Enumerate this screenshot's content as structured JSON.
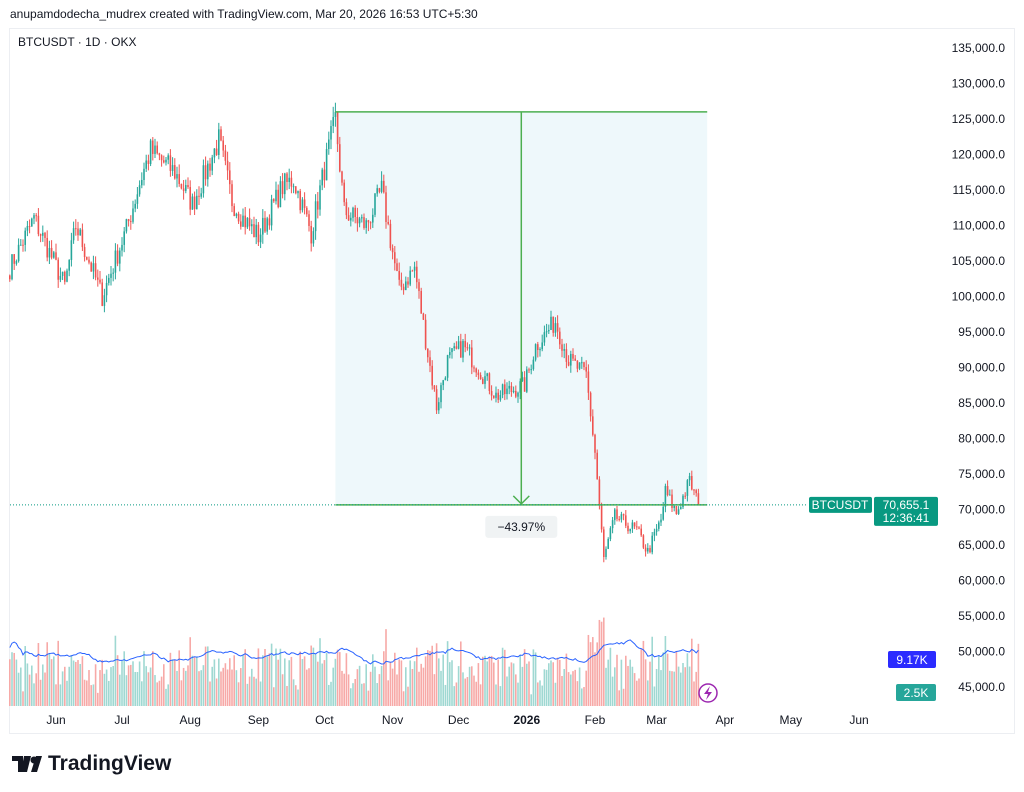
{
  "credit": "anupamdodecha_mudrex created with TradingView.com, Mar 20, 2026 16:53 UTC+5:30",
  "symbol_line": "BTCUSDT · 1D · OKX",
  "logo_text": "TradingView",
  "colors": {
    "up": "#26a69a",
    "down": "#ef5350",
    "measure": "#4caf50",
    "measure_fill": "#eef8fb",
    "vol_ma": "#2962ff",
    "last_label": "#089981"
  },
  "chart_data": {
    "type": "candlestick",
    "title": "",
    "ylim": [
      42000,
      138000
    ],
    "y_ticks": [
      "135,000.0",
      "130,000.0",
      "125,000.0",
      "120,000.0",
      "115,000.0",
      "110,000.0",
      "105,000.0",
      "100,000.0",
      "95,000.0",
      "90,000.0",
      "85,000.0",
      "80,000.0",
      "75,000.0",
      "70,000.0",
      "65,000.0",
      "60,000.0",
      "55,000.0",
      "50,000.0",
      "45,000.0"
    ],
    "x_ticks": [
      "Jun",
      "Jul",
      "Aug",
      "Sep",
      "Oct",
      "Nov",
      "Dec",
      "2026",
      "Feb",
      "Mar",
      "Apr",
      "May",
      "Jun"
    ],
    "close_anchors": [
      [
        "2025-05-11",
        104000
      ],
      [
        "2025-05-22",
        111000
      ],
      [
        "2025-06-05",
        101500
      ],
      [
        "2025-06-10",
        110000
      ],
      [
        "2025-06-22",
        100000
      ],
      [
        "2025-07-03",
        109500
      ],
      [
        "2025-07-10",
        117000
      ],
      [
        "2025-07-14",
        120500
      ],
      [
        "2025-07-25",
        117500
      ],
      [
        "2025-08-02",
        113000
      ],
      [
        "2025-08-14",
        122000
      ],
      [
        "2025-08-20",
        113500
      ],
      [
        "2025-08-25",
        111000
      ],
      [
        "2025-09-01",
        108500
      ],
      [
        "2025-09-12",
        115500
      ],
      [
        "2025-09-17",
        116500
      ],
      [
        "2025-09-25",
        109000
      ],
      [
        "2025-10-01",
        118000
      ],
      [
        "2025-10-06",
        125000
      ],
      [
        "2025-10-10",
        112000
      ],
      [
        "2025-10-20",
        110000
      ],
      [
        "2025-10-27",
        115000
      ],
      [
        "2025-11-04",
        101000
      ],
      [
        "2025-11-11",
        104000
      ],
      [
        "2025-11-17",
        92000
      ],
      [
        "2025-11-21",
        84500
      ],
      [
        "2025-11-26",
        91000
      ],
      [
        "2025-12-03",
        93000
      ],
      [
        "2025-12-10",
        90000
      ],
      [
        "2025-12-18",
        86000
      ],
      [
        "2025-12-31",
        87500
      ],
      [
        "2026-01-05",
        93000
      ],
      [
        "2026-01-14",
        96500
      ],
      [
        "2026-01-20",
        91000
      ],
      [
        "2026-01-28",
        89000
      ],
      [
        "2026-02-01",
        78000
      ],
      [
        "2026-02-05",
        63000
      ],
      [
        "2026-02-10",
        69000
      ],
      [
        "2026-02-20",
        67000
      ],
      [
        "2026-02-25",
        64000
      ],
      [
        "2026-03-03",
        68500
      ],
      [
        "2026-03-05",
        72500
      ],
      [
        "2026-03-10",
        69500
      ],
      [
        "2026-03-16",
        74000
      ],
      [
        "2026-03-20",
        70655.1
      ]
    ],
    "last_price": {
      "symbol": "BTCUSDT",
      "price": "70,655.1",
      "countdown": "12:36:41",
      "value": 70655.1
    },
    "measure": {
      "from_date": "2025-10-06",
      "to_date": "2026-03-24",
      "high": 126000,
      "low": 70655.1,
      "label": "−43.97%"
    },
    "volume": {
      "ma_label": "9.17K",
      "vol_label": "2.5K"
    }
  }
}
